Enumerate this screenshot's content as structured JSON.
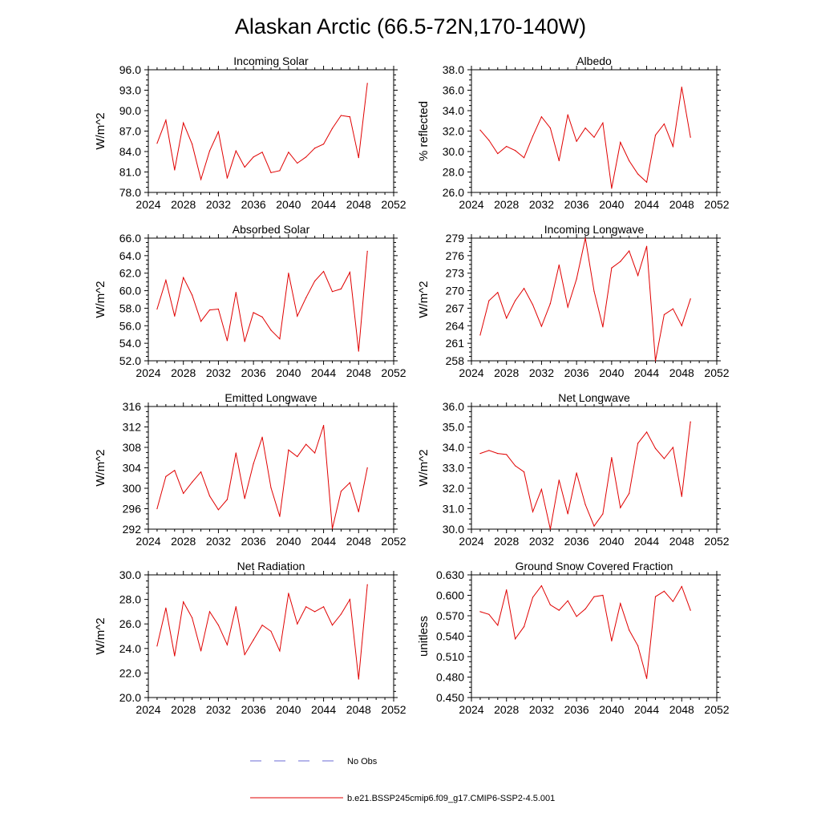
{
  "figure": {
    "title": "Alaskan Arctic (66.5-72N,170-140W)",
    "line_color": "#e00000",
    "obs_color": "#6b6bd6"
  },
  "legend": {
    "obs_label": "No Obs",
    "model_label": "b.e21.BSSP245cmip6.f09_g17.CMIP6-SSP2-4.5.001"
  },
  "chart_data": [
    {
      "type": "line",
      "title": "Incoming Solar",
      "xlabel": "",
      "ylabel": "W/m^2",
      "xlim": [
        2024,
        2052
      ],
      "ylim": [
        78.0,
        96.0
      ],
      "xticks": [
        2024,
        2028,
        2032,
        2036,
        2040,
        2044,
        2048,
        2052
      ],
      "yticks": [
        "78.0",
        "81.0",
        "84.0",
        "87.0",
        "90.0",
        "93.0",
        "96.0"
      ],
      "x": [
        2025,
        2026,
        2027,
        2028,
        2029,
        2030,
        2031,
        2032,
        2033,
        2034,
        2035,
        2036,
        2037,
        2038,
        2039,
        2040,
        2041,
        2042,
        2043,
        2044,
        2045,
        2046,
        2047,
        2048,
        2049
      ],
      "values": [
        85.2,
        88.6,
        81.3,
        88.2,
        85.1,
        79.9,
        84.1,
        86.9,
        80.1,
        84.1,
        81.7,
        83.2,
        83.9,
        80.9,
        81.2,
        83.9,
        82.3,
        83.2,
        84.5,
        85.1,
        87.4,
        89.3,
        89.1,
        83.1,
        94.0
      ]
    },
    {
      "type": "line",
      "title": "Albedo",
      "xlabel": "",
      "ylabel": "% reflected",
      "xlim": [
        2024,
        2052
      ],
      "ylim": [
        26.0,
        38.0
      ],
      "xticks": [
        2024,
        2028,
        2032,
        2036,
        2040,
        2044,
        2048,
        2052
      ],
      "yticks": [
        "26.0",
        "28.0",
        "30.0",
        "32.0",
        "34.0",
        "36.0",
        "38.0"
      ],
      "x": [
        2025,
        2026,
        2027,
        2028,
        2029,
        2030,
        2031,
        2032,
        2033,
        2034,
        2035,
        2036,
        2037,
        2038,
        2039,
        2040,
        2041,
        2042,
        2043,
        2044,
        2045,
        2046,
        2047,
        2048,
        2049
      ],
      "values": [
        32.1,
        31.1,
        29.8,
        30.5,
        30.1,
        29.4,
        31.5,
        33.4,
        32.3,
        29.1,
        33.6,
        31.0,
        32.3,
        31.4,
        32.8,
        26.4,
        30.9,
        29.1,
        27.8,
        27.0,
        31.6,
        32.7,
        30.5,
        36.3,
        31.4
      ]
    },
    {
      "type": "line",
      "title": "Absorbed Solar",
      "xlabel": "",
      "ylabel": "W/m^2",
      "xlim": [
        2024,
        2052
      ],
      "ylim": [
        52.0,
        66.0
      ],
      "xticks": [
        2024,
        2028,
        2032,
        2036,
        2040,
        2044,
        2048,
        2052
      ],
      "yticks": [
        "52.0",
        "54.0",
        "56.0",
        "58.0",
        "60.0",
        "62.0",
        "64.0",
        "66.0"
      ],
      "x": [
        2025,
        2026,
        2027,
        2028,
        2029,
        2030,
        2031,
        2032,
        2033,
        2034,
        2035,
        2036,
        2037,
        2038,
        2039,
        2040,
        2041,
        2042,
        2043,
        2044,
        2045,
        2046,
        2047,
        2048,
        2049
      ],
      "values": [
        57.9,
        61.2,
        57.1,
        61.5,
        59.5,
        56.5,
        57.8,
        57.9,
        54.3,
        59.8,
        54.2,
        57.5,
        57.0,
        55.5,
        54.5,
        62.0,
        57.1,
        59.2,
        61.1,
        62.2,
        59.9,
        60.2,
        62.1,
        53.1,
        64.5
      ]
    },
    {
      "type": "line",
      "title": "Incoming Longwave",
      "xlabel": "",
      "ylabel": "W/m^2",
      "xlim": [
        2024,
        2052
      ],
      "ylim": [
        258,
        279
      ],
      "xticks": [
        2024,
        2028,
        2032,
        2036,
        2040,
        2044,
        2048,
        2052
      ],
      "yticks": [
        "258",
        "261",
        "264",
        "267",
        "270",
        "273",
        "276",
        "279"
      ],
      "x": [
        2025,
        2026,
        2027,
        2028,
        2029,
        2030,
        2031,
        2032,
        2033,
        2034,
        2035,
        2036,
        2037,
        2038,
        2039,
        2040,
        2041,
        2042,
        2043,
        2044,
        2045,
        2046,
        2047,
        2048,
        2049
      ],
      "values": [
        262.4,
        268.3,
        269.7,
        265.3,
        268.3,
        270.4,
        267.6,
        263.9,
        267.8,
        274.4,
        267.2,
        272.0,
        279.0,
        269.9,
        263.8,
        273.9,
        275.0,
        276.8,
        272.6,
        277.6,
        258.0,
        265.9,
        266.9,
        264.0,
        268.6
      ]
    },
    {
      "type": "line",
      "title": "Emitted Longwave",
      "xlabel": "",
      "ylabel": "W/m^2",
      "xlim": [
        2024,
        2052
      ],
      "ylim": [
        292,
        316
      ],
      "xticks": [
        2024,
        2028,
        2032,
        2036,
        2040,
        2044,
        2048,
        2052
      ],
      "yticks": [
        "292",
        "296",
        "300",
        "304",
        "308",
        "312",
        "316"
      ],
      "x": [
        2025,
        2026,
        2027,
        2028,
        2029,
        2030,
        2031,
        2032,
        2033,
        2034,
        2035,
        2036,
        2037,
        2038,
        2039,
        2040,
        2041,
        2042,
        2043,
        2044,
        2045,
        2046,
        2047,
        2048,
        2049
      ],
      "values": [
        296.0,
        302.3,
        303.5,
        299.0,
        301.2,
        303.2,
        298.5,
        295.8,
        297.8,
        306.9,
        298.0,
        304.8,
        310.0,
        300.1,
        294.5,
        307.5,
        306.2,
        308.6,
        306.9,
        312.3,
        292.1,
        299.4,
        301.1,
        295.4,
        304.0
      ]
    },
    {
      "type": "line",
      "title": "Net Longwave",
      "xlabel": "",
      "ylabel": "W/m^2",
      "xlim": [
        2024,
        2052
      ],
      "ylim": [
        30.0,
        36.0
      ],
      "xticks": [
        2024,
        2028,
        2032,
        2036,
        2040,
        2044,
        2048,
        2052
      ],
      "yticks": [
        "30.0",
        "31.0",
        "32.0",
        "33.0",
        "34.0",
        "35.0",
        "36.0"
      ],
      "x": [
        2025,
        2026,
        2027,
        2028,
        2029,
        2030,
        2031,
        2032,
        2033,
        2034,
        2035,
        2036,
        2037,
        2038,
        2039,
        2040,
        2041,
        2042,
        2043,
        2044,
        2045,
        2046,
        2047,
        2048,
        2049
      ],
      "values": [
        33.7,
        33.85,
        33.7,
        33.65,
        33.1,
        32.8,
        30.85,
        31.95,
        30.0,
        32.4,
        30.75,
        32.75,
        31.2,
        30.15,
        30.75,
        33.5,
        31.05,
        31.75,
        34.2,
        34.75,
        33.95,
        33.45,
        34.0,
        31.6,
        35.25
      ]
    },
    {
      "type": "line",
      "title": "Net Radiation",
      "xlabel": "",
      "ylabel": "W/m^2",
      "xlim": [
        2024,
        2052
      ],
      "ylim": [
        20.0,
        30.0
      ],
      "xticks": [
        2024,
        2028,
        2032,
        2036,
        2040,
        2044,
        2048,
        2052
      ],
      "yticks": [
        "20.0",
        "22.0",
        "24.0",
        "26.0",
        "28.0",
        "30.0"
      ],
      "x": [
        2025,
        2026,
        2027,
        2028,
        2029,
        2030,
        2031,
        2032,
        2033,
        2034,
        2035,
        2036,
        2037,
        2038,
        2039,
        2040,
        2041,
        2042,
        2043,
        2044,
        2045,
        2046,
        2047,
        2048,
        2049
      ],
      "values": [
        24.2,
        27.3,
        23.4,
        27.8,
        26.5,
        23.8,
        27.0,
        25.9,
        24.3,
        27.4,
        23.5,
        24.7,
        25.9,
        25.4,
        23.8,
        28.5,
        26.0,
        27.4,
        27.0,
        27.4,
        25.9,
        26.8,
        28.0,
        21.5,
        29.2
      ]
    },
    {
      "type": "line",
      "title": "Ground Snow Covered Fraction",
      "xlabel": "",
      "ylabel": "unitless",
      "xlim": [
        2024,
        2052
      ],
      "ylim": [
        0.45,
        0.63
      ],
      "xticks": [
        2024,
        2028,
        2032,
        2036,
        2040,
        2044,
        2048,
        2052
      ],
      "yticks": [
        "0.450",
        "0.480",
        "0.510",
        "0.540",
        "0.570",
        "0.600",
        "0.630"
      ],
      "x": [
        2025,
        2026,
        2027,
        2028,
        2029,
        2030,
        2031,
        2032,
        2033,
        2034,
        2035,
        2036,
        2037,
        2038,
        2039,
        2040,
        2041,
        2042,
        2043,
        2044,
        2045,
        2046,
        2047,
        2048,
        2049
      ],
      "values": [
        0.576,
        0.572,
        0.556,
        0.608,
        0.536,
        0.554,
        0.597,
        0.614,
        0.586,
        0.578,
        0.592,
        0.569,
        0.58,
        0.598,
        0.6,
        0.533,
        0.588,
        0.549,
        0.526,
        0.478,
        0.598,
        0.606,
        0.591,
        0.613,
        0.578
      ]
    }
  ]
}
